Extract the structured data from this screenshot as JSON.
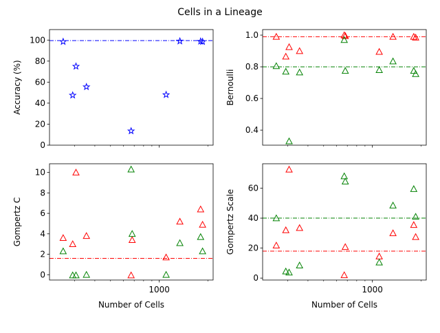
{
  "figure_title": "Cells in a Lineage",
  "chart_data": [
    {
      "type": "scatter",
      "xlabel": "",
      "ylabel": "Accuracy (%)",
      "xscale": "log",
      "xlim": [
        210,
        2150
      ],
      "ylim": [
        0,
        110
      ],
      "xtick_values": [
        1000
      ],
      "xtick_labels": [
        ""
      ],
      "ytick_values": [
        0,
        20,
        40,
        60,
        80,
        100
      ],
      "ytick_labels": [
        "0",
        "20",
        "40",
        "60",
        "80",
        "100"
      ],
      "series": [
        {
          "marker": "star",
          "color": "#0000ff",
          "x": [
            255,
            292,
            306,
            355,
            670,
            1102,
            1340,
            1800,
            1850
          ],
          "y": [
            98.5,
            47.5,
            75.0,
            55.5,
            13.5,
            48.0,
            99.0,
            98.8,
            98.5
          ]
        }
      ],
      "reference_lines": [
        {
          "y": 99.5,
          "color": "#0000ff",
          "style": "dashdot"
        }
      ]
    },
    {
      "type": "scatter",
      "xlabel": "",
      "ylabel": "Bernoulli",
      "xscale": "log",
      "xlim": [
        210,
        2150
      ],
      "ylim": [
        0.305,
        1.035
      ],
      "xtick_values": [
        1000
      ],
      "xtick_labels": [
        ""
      ],
      "ytick_values": [
        0.4,
        0.6,
        0.8,
        1.0
      ],
      "ytick_labels": [
        "0.4",
        "0.6",
        "0.8",
        "1.0"
      ],
      "series": [
        {
          "marker": "triangle",
          "color": "#ff0000",
          "x": [
            255,
            292,
            306,
            355,
            670,
            680,
            1102,
            1340,
            1800,
            1850
          ],
          "y": [
            0.99,
            0.865,
            0.925,
            0.9,
            1.0,
            0.995,
            0.895,
            0.99,
            0.99,
            0.985
          ]
        },
        {
          "marker": "triangle",
          "color": "#008000",
          "x": [
            255,
            292,
            306,
            355,
            670,
            680,
            1102,
            1340,
            1800,
            1850
          ],
          "y": [
            0.805,
            0.77,
            0.33,
            0.765,
            0.97,
            0.775,
            0.78,
            0.835,
            0.775,
            0.755
          ]
        }
      ],
      "reference_lines": [
        {
          "y": 0.99,
          "color": "#ff0000",
          "style": "dashdot"
        },
        {
          "y": 0.8,
          "color": "#008000",
          "style": "dashdot"
        }
      ]
    },
    {
      "type": "scatter",
      "xlabel": "Number of Cells",
      "ylabel": "Gompertz C",
      "xscale": "log",
      "xlim": [
        210,
        2150
      ],
      "ylim": [
        -0.52,
        10.85
      ],
      "xtick_values": [
        1000
      ],
      "xtick_labels": [
        "1000"
      ],
      "ytick_values": [
        0,
        2,
        4,
        6,
        8,
        10
      ],
      "ytick_labels": [
        "0",
        "2",
        "4",
        "6",
        "8",
        "10"
      ],
      "series": [
        {
          "marker": "triangle",
          "color": "#ff0000",
          "x": [
            255,
            292,
            306,
            355,
            670,
            680,
            1102,
            1340,
            1800,
            1850
          ],
          "y": [
            3.6,
            3.0,
            10.0,
            3.8,
            -0.05,
            3.4,
            1.7,
            5.2,
            6.4,
            4.9
          ]
        },
        {
          "marker": "triangle",
          "color": "#008000",
          "x": [
            255,
            292,
            306,
            355,
            670,
            680,
            1102,
            1340,
            1800,
            1850
          ],
          "y": [
            2.3,
            -0.05,
            -0.05,
            0.0,
            10.3,
            4.0,
            0.0,
            3.1,
            3.7,
            2.3
          ]
        }
      ],
      "reference_lines": [
        {
          "y": 1.6,
          "color": "#ff0000",
          "style": "dashdot"
        }
      ]
    },
    {
      "type": "scatter",
      "xlabel": "Number of Cells",
      "ylabel": "Gompertz Scale",
      "xscale": "log",
      "xlim": [
        210,
        2150
      ],
      "ylim": [
        -1.3,
        76.3
      ],
      "xtick_values": [
        1000
      ],
      "xtick_labels": [
        "1000"
      ],
      "ytick_values": [
        0,
        20,
        40,
        60
      ],
      "ytick_labels": [
        "0",
        "20",
        "40",
        "60"
      ],
      "series": [
        {
          "marker": "triangle",
          "color": "#ff0000",
          "x": [
            255,
            292,
            306,
            355,
            670,
            680,
            1102,
            1340,
            1800,
            1850
          ],
          "y": [
            21.8,
            32.0,
            72.5,
            33.5,
            2.0,
            20.8,
            14.5,
            30.0,
            35.5,
            27.5
          ]
        },
        {
          "marker": "triangle",
          "color": "#008000",
          "x": [
            255,
            292,
            306,
            355,
            670,
            680,
            1102,
            1340,
            1800,
            1850
          ],
          "y": [
            40.0,
            4.5,
            3.8,
            8.5,
            68.0,
            64.5,
            10.5,
            48.5,
            59.5,
            41.0
          ]
        }
      ],
      "reference_lines": [
        {
          "y": 40.0,
          "color": "#008000",
          "style": "dashdot"
        },
        {
          "y": 18.0,
          "color": "#ff0000",
          "style": "dashdot"
        }
      ]
    }
  ]
}
